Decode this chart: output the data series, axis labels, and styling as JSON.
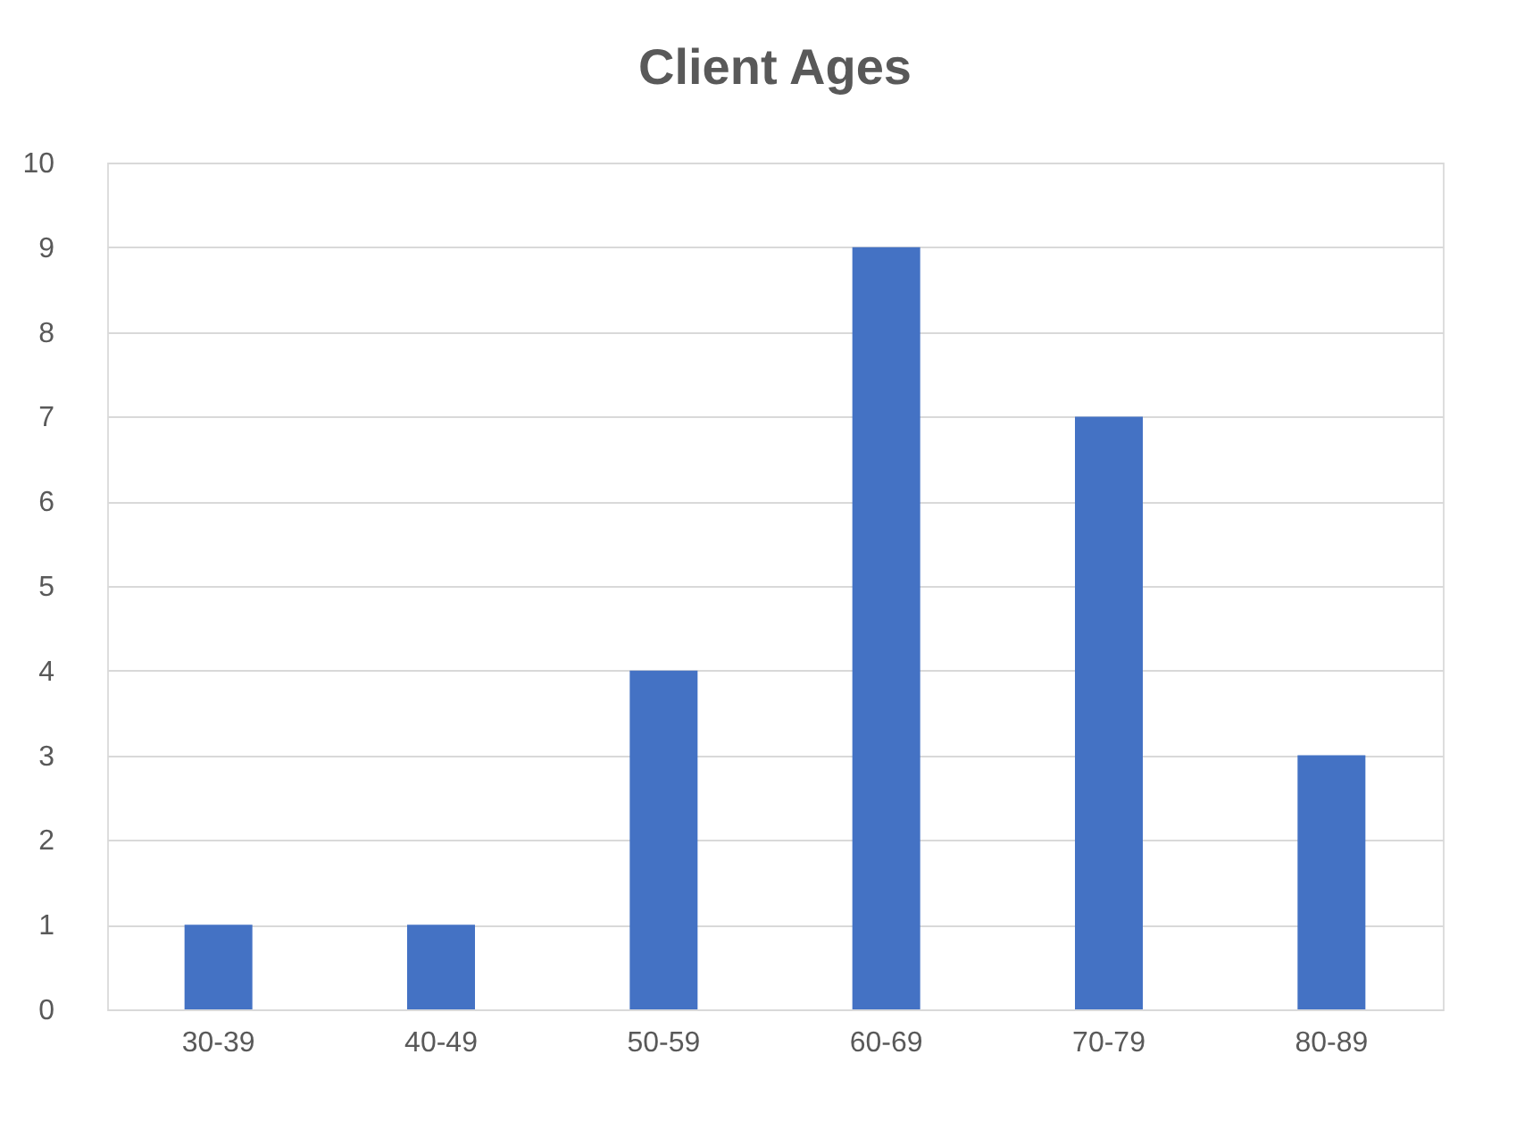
{
  "chart_data": {
    "type": "bar",
    "title": "Client Ages",
    "categories": [
      "30-39",
      "40-49",
      "50-59",
      "60-69",
      "70-79",
      "80-89"
    ],
    "values": [
      1,
      1,
      4,
      9,
      7,
      3
    ],
    "color": "#4472c4",
    "ylim": [
      0,
      10
    ],
    "yticks": [
      0,
      1,
      2,
      3,
      4,
      5,
      6,
      7,
      8,
      9,
      10
    ],
    "grid": "y"
  }
}
